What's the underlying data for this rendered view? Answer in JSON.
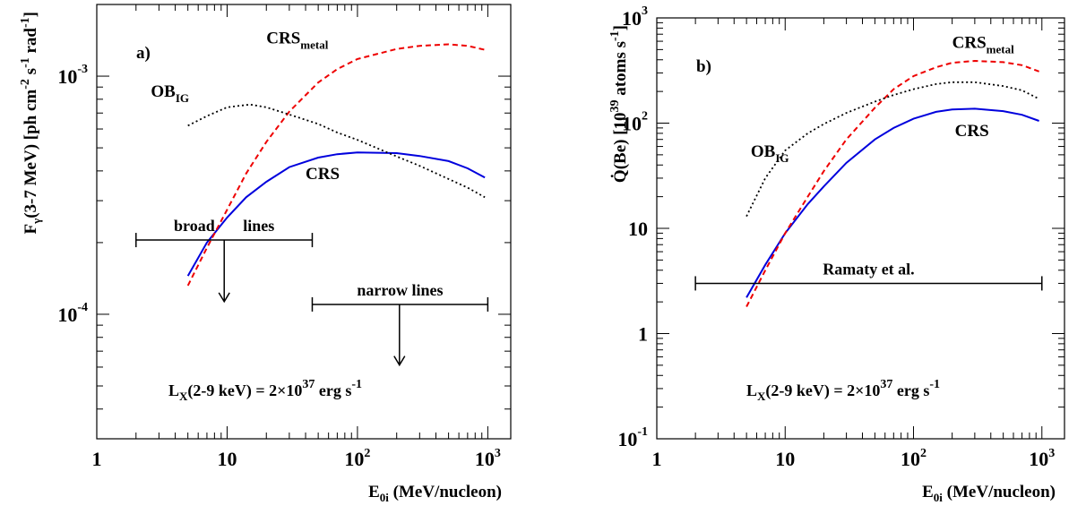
{
  "chart_data": [
    {
      "panel": "a)",
      "type": "line",
      "x_axis": {
        "label": "E",
        "label_sub": "0i",
        "label_suffix": " (MeV/nucleon)",
        "scale": "log",
        "range": [
          1,
          1500
        ],
        "tick_labels": [
          {
            "value": 1,
            "text": "1",
            "exp": ""
          },
          {
            "value": 10,
            "text": "10",
            "exp": ""
          },
          {
            "value": 100,
            "text": "10",
            "exp": "2"
          },
          {
            "value": 1000,
            "text": "10",
            "exp": "3"
          }
        ]
      },
      "y_axis": {
        "label_parts": [
          {
            "t": "F"
          },
          {
            "t": "γ",
            "sub": true
          },
          {
            "t": "(3-7 MeV) [ph cm"
          },
          {
            "t": "-2",
            "sup": true
          },
          {
            "t": " s"
          },
          {
            "t": "-1",
            "sup": true
          },
          {
            "t": " rad"
          },
          {
            "t": "-1",
            "sup": true
          },
          {
            "t": "]"
          }
        ],
        "scale": "log",
        "range": [
          3e-05,
          0.002
        ],
        "tick_labels": [
          {
            "value": 0.001,
            "text": "10",
            "exp": "-3"
          },
          {
            "value": 0.0001,
            "text": "10",
            "exp": "-4"
          }
        ]
      },
      "series": [
        {
          "name": "CRS",
          "name_sub": "",
          "color": "#0000dd",
          "dash": "solid",
          "x": [
            5,
            7,
            10,
            14,
            20,
            30,
            50,
            70,
            100,
            200,
            300,
            500,
            700,
            950
          ],
          "y": [
            0.000145,
            0.0002,
            0.000255,
            0.00031,
            0.00036,
            0.000415,
            0.000455,
            0.00047,
            0.000478,
            0.000475,
            0.000462,
            0.00044,
            0.00041,
            0.000375
          ]
        },
        {
          "name": "CRS",
          "name_sub": "metal",
          "color": "#ee0000",
          "dash": "dashed",
          "x": [
            5,
            7,
            10,
            14,
            20,
            30,
            50,
            70,
            100,
            200,
            300,
            500,
            700,
            950
          ],
          "y": [
            0.000132,
            0.00019,
            0.000275,
            0.00039,
            0.00053,
            0.00071,
            0.00094,
            0.00107,
            0.00118,
            0.0013,
            0.00134,
            0.00136,
            0.00134,
            0.00129
          ]
        },
        {
          "name": "OB",
          "name_sub": "IG",
          "color": "#000000",
          "dash": "dotted",
          "x": [
            5,
            7,
            10,
            15,
            20,
            30,
            50,
            70,
            100,
            200,
            300,
            500,
            700,
            950
          ],
          "y": [
            0.00062,
            0.00068,
            0.00074,
            0.00076,
            0.00074,
            0.00069,
            0.00063,
            0.00058,
            0.00054,
            0.00046,
            0.00042,
            0.00037,
            0.00034,
            0.00031
          ]
        }
      ],
      "series_labels": [
        {
          "text": "CRS",
          "sub": "metal",
          "x": 20,
          "y": 0.00137
        },
        {
          "text": "OB",
          "sub": "IG",
          "x": 2.6,
          "y": 0.00082
        },
        {
          "text": "CRS",
          "sub": "",
          "x": 40,
          "y": 0.00037
        }
      ],
      "limits": [
        {
          "label": "broad       lines",
          "x_range": [
            2,
            45
          ],
          "y": 0.000205,
          "arrow_x": 9.5,
          "arrow_to": 0.000113
        },
        {
          "label": "narrow lines",
          "x_range": [
            45,
            1000
          ],
          "y": 0.00011,
          "arrow_x": 210,
          "arrow_to": 6.12e-05
        }
      ],
      "annotation": {
        "text": "L",
        "sub": "X",
        "mid": "(2-9 keV) = 2×10",
        "sup": "37",
        "tail": " erg s",
        "sup2": "-1"
      }
    },
    {
      "panel": "b)",
      "type": "line",
      "x_axis": {
        "label": "E",
        "label_sub": "0i",
        "label_suffix": " (MeV/nucleon)",
        "scale": "log",
        "range": [
          1,
          1500
        ],
        "tick_labels": [
          {
            "value": 1,
            "text": "1",
            "exp": ""
          },
          {
            "value": 10,
            "text": "10",
            "exp": ""
          },
          {
            "value": 100,
            "text": "10",
            "exp": "2"
          },
          {
            "value": 1000,
            "text": "10",
            "exp": "3"
          }
        ]
      },
      "y_axis": {
        "label_parts": [
          {
            "t": "Q̇(Be) [10"
          },
          {
            "t": "39",
            "sup": true
          },
          {
            "t": " atoms s"
          },
          {
            "t": "-1",
            "sup": true
          },
          {
            "t": "]"
          }
        ],
        "scale": "log",
        "range": [
          0.1,
          1000
        ],
        "tick_labels": [
          {
            "value": 1000,
            "text": "10",
            "exp": "3"
          },
          {
            "value": 100,
            "text": "10",
            "exp": "2"
          },
          {
            "value": 10,
            "text": "10",
            "exp": ""
          },
          {
            "value": 1,
            "text": "1",
            "exp": ""
          },
          {
            "value": 0.1,
            "text": "10",
            "exp": "-1"
          }
        ]
      },
      "series": [
        {
          "name": "CRS",
          "name_sub": "",
          "color": "#0000dd",
          "dash": "solid",
          "x": [
            5,
            7,
            10,
            15,
            20,
            30,
            50,
            70,
            100,
            150,
            200,
            300,
            500,
            700,
            950
          ],
          "y": [
            2.2,
            4.5,
            9,
            17,
            25,
            42,
            70,
            90,
            110,
            128,
            135,
            137,
            130,
            120,
            105
          ]
        },
        {
          "name": "CRS",
          "name_sub": "metal",
          "color": "#ee0000",
          "dash": "dashed",
          "x": [
            5,
            7,
            10,
            15,
            20,
            30,
            50,
            70,
            100,
            150,
            200,
            300,
            500,
            700,
            950
          ],
          "y": [
            1.8,
            4,
            9,
            20,
            35,
            70,
            140,
            210,
            280,
            340,
            375,
            390,
            380,
            355,
            310
          ]
        },
        {
          "name": "OB",
          "name_sub": "IG",
          "color": "#000000",
          "dash": "dotted",
          "x": [
            5,
            7,
            10,
            15,
            20,
            30,
            50,
            70,
            100,
            150,
            200,
            300,
            500,
            700,
            950
          ],
          "y": [
            13,
            30,
            55,
            80,
            98,
            125,
            160,
            185,
            210,
            235,
            245,
            245,
            225,
            205,
            170
          ]
        }
      ],
      "series_labels": [
        {
          "text": "CRS",
          "sub": "metal",
          "x": 200,
          "y": 520
        },
        {
          "text": "OB",
          "sub": "IG",
          "x": 5.4,
          "y": 48
        },
        {
          "text": "CRS",
          "sub": "",
          "x": 210,
          "y": 75
        }
      ],
      "limits": [
        {
          "label": "Ramaty et al.",
          "x_range": [
            2,
            1000
          ],
          "y": 3,
          "arrow_x": null,
          "arrow_to": null
        }
      ],
      "annotation": {
        "text": "L",
        "sub": "X",
        "mid": "(2-9 keV) = 2×10",
        "sup": "37",
        "tail": " erg s",
        "sup2": "-1"
      }
    }
  ]
}
